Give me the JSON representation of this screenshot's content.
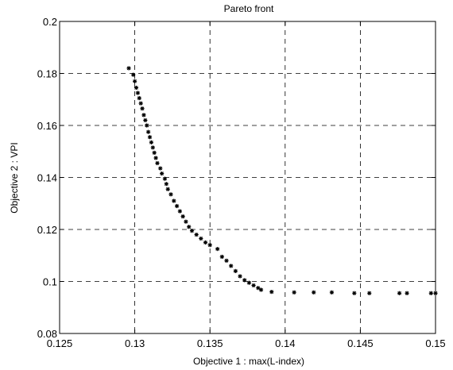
{
  "chart_data": {
    "type": "scatter",
    "title": "Pareto front",
    "xlabel": "Objective 1 : max(L-index)",
    "ylabel": "Objective 2 : VPI",
    "xlim": [
      0.125,
      0.15
    ],
    "ylim": [
      0.08,
      0.2
    ],
    "xticks": [
      0.125,
      0.13,
      0.135,
      0.14,
      0.145,
      0.15
    ],
    "xtick_labels": [
      "0.125",
      "0.13",
      "0.135",
      "0.14",
      "0.145",
      "0.15"
    ],
    "yticks": [
      0.08,
      0.1,
      0.12,
      0.14,
      0.16,
      0.18,
      0.2
    ],
    "ytick_labels": [
      "0.08",
      "0.1",
      "0.12",
      "0.14",
      "0.16",
      "0.18",
      "0.2"
    ],
    "grid": true,
    "marker": "star",
    "series": [
      {
        "points": [
          [
            0.1296,
            0.182
          ],
          [
            0.1299,
            0.1795
          ],
          [
            0.13,
            0.177
          ],
          [
            0.1301,
            0.1745
          ],
          [
            0.1302,
            0.1725
          ],
          [
            0.1303,
            0.1705
          ],
          [
            0.1304,
            0.1685
          ],
          [
            0.1305,
            0.1665
          ],
          [
            0.1306,
            0.164
          ],
          [
            0.1307,
            0.162
          ],
          [
            0.1308,
            0.16
          ],
          [
            0.1309,
            0.1575
          ],
          [
            0.131,
            0.1555
          ],
          [
            0.1311,
            0.1535
          ],
          [
            0.1312,
            0.1515
          ],
          [
            0.1313,
            0.1495
          ],
          [
            0.1314,
            0.1475
          ],
          [
            0.1315,
            0.1455
          ],
          [
            0.1317,
            0.1435
          ],
          [
            0.1318,
            0.1415
          ],
          [
            0.132,
            0.1395
          ],
          [
            0.1321,
            0.1375
          ],
          [
            0.1322,
            0.1355
          ],
          [
            0.1324,
            0.1335
          ],
          [
            0.1326,
            0.131
          ],
          [
            0.1328,
            0.129
          ],
          [
            0.133,
            0.127
          ],
          [
            0.1332,
            0.125
          ],
          [
            0.1334,
            0.123
          ],
          [
            0.1336,
            0.121
          ],
          [
            0.1338,
            0.1195
          ],
          [
            0.1341,
            0.118
          ],
          [
            0.1344,
            0.1165
          ],
          [
            0.1347,
            0.115
          ],
          [
            0.135,
            0.114
          ],
          [
            0.1355,
            0.1125
          ],
          [
            0.1358,
            0.1095
          ],
          [
            0.1361,
            0.108
          ],
          [
            0.1364,
            0.106
          ],
          [
            0.1367,
            0.104
          ],
          [
            0.137,
            0.102
          ],
          [
            0.1373,
            0.1005
          ],
          [
            0.1376,
            0.0995
          ],
          [
            0.1379,
            0.0985
          ],
          [
            0.1382,
            0.0975
          ],
          [
            0.1384,
            0.0968
          ],
          [
            0.1391,
            0.096
          ],
          [
            0.1406,
            0.0958
          ],
          [
            0.1419,
            0.0958
          ],
          [
            0.1431,
            0.0958
          ],
          [
            0.1446,
            0.0955
          ],
          [
            0.1456,
            0.0955
          ],
          [
            0.1476,
            0.0955
          ],
          [
            0.1481,
            0.0955
          ],
          [
            0.1497,
            0.0955
          ],
          [
            0.15,
            0.0955
          ]
        ]
      }
    ]
  }
}
